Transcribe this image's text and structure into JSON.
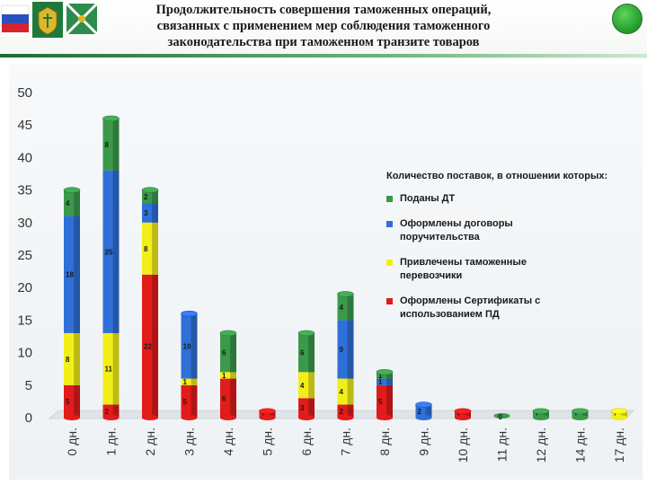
{
  "header": {
    "title_lines": [
      "Продолжительность совершения таможенных операций,",
      "связанных с применением мер соблюдения таможенного",
      "законодательства при таможенном транзите товаров"
    ]
  },
  "colors": {
    "green": "#3a9a4a",
    "blue": "#2f6fd8",
    "yellow": "#f2ee1a",
    "red": "#e21b1b",
    "status_dot": "#2fb33a"
  },
  "icons": [
    "russian-flag-icon",
    "customs-emblem-icon",
    "customs-flag-icon",
    "status-dot-icon"
  ],
  "chart_data": {
    "type": "bar",
    "stacked": true,
    "three_d": true,
    "categories": [
      "0 дн.",
      "1 дн.",
      "2 дн.",
      "3 дн.",
      "4 дн.",
      "5 дн.",
      "6 дн.",
      "7 дн.",
      "8 дн.",
      "9 дн.",
      "10 дн.",
      "11 дн.",
      "12 дн.",
      "14 дн.",
      "17 дн."
    ],
    "series": [
      {
        "name": "Оформлены Сертификаты с использованием ПД",
        "color": "#e21b1b",
        "values": [
          5,
          2,
          22,
          5,
          6,
          1,
          3,
          2,
          5,
          0,
          1,
          0,
          0,
          0,
          0
        ]
      },
      {
        "name": "Привлечены таможенные перевозчики",
        "color": "#f2ee1a",
        "values": [
          8,
          11,
          8,
          1,
          1,
          0,
          4,
          4,
          0,
          0,
          0,
          0,
          0,
          0,
          1
        ]
      },
      {
        "name": "Оформлены договоры поручительства",
        "color": "#2f6fd8",
        "values": [
          18,
          25,
          3,
          10,
          0,
          0,
          0,
          9,
          1,
          2,
          0,
          0,
          0,
          0,
          0
        ]
      },
      {
        "name": "Поданы ДТ",
        "color": "#3a9a4a",
        "values": [
          4,
          8,
          2,
          0,
          6,
          0,
          6,
          4,
          1,
          0,
          0,
          0,
          1,
          1,
          0
        ]
      }
    ],
    "extra_labels": [
      {
        "category": "11 дн.",
        "text": "0"
      }
    ],
    "ylim": [
      0,
      50
    ],
    "yticks": [
      0,
      5,
      10,
      15,
      20,
      25,
      30,
      35,
      40,
      45,
      50
    ],
    "grid": false,
    "legend": {
      "title": "Количество поставок, в отношении которых:",
      "position": "right",
      "order": [
        "Поданы ДТ",
        "Оформлены договоры поручительства",
        "Привлечены таможенные перевозчики",
        "Оформлены Сертификаты с использованием ПД"
      ],
      "labels": [
        {
          "name": "Поданы ДТ",
          "color": "#3a9a4a"
        },
        {
          "name": "Оформлены договоры поручительства",
          "color": "#2f6fd8"
        },
        {
          "name": "Привлечены таможенные перевозчики",
          "color": "#f2ee1a"
        },
        {
          "name": "Оформлены Сертификаты с использованием ПД",
          "color": "#e21b1b"
        }
      ]
    }
  }
}
